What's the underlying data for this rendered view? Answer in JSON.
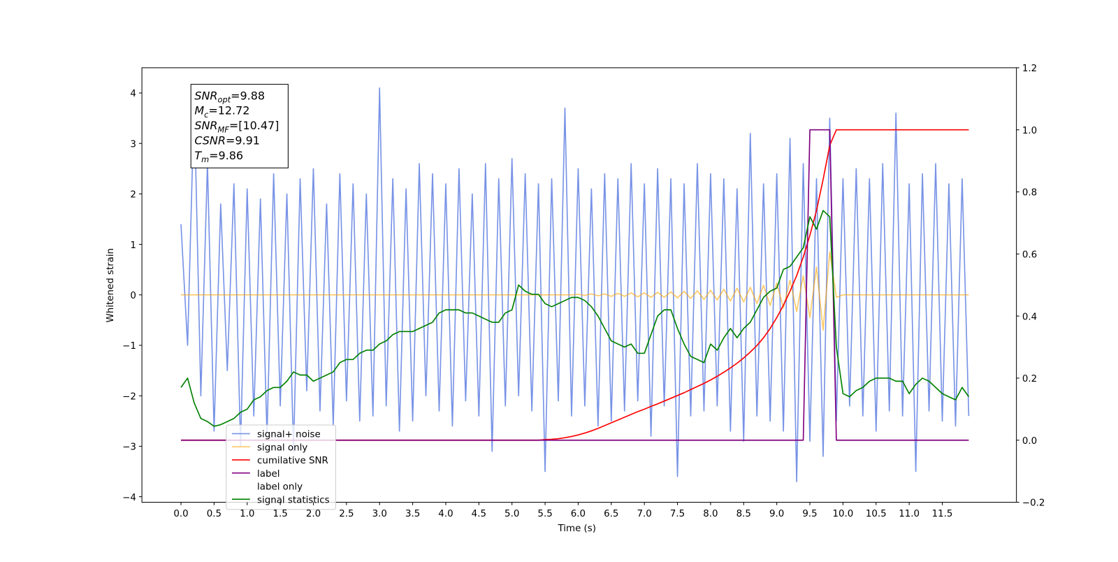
{
  "chart_data": {
    "type": "line",
    "xlabel": "Time (s)",
    "ylabel": "Whitened strain",
    "xlim": [
      -0.59,
      12.62
    ],
    "ylim": [
      -4.11,
      4.5
    ],
    "y2lim": [
      -0.2,
      1.2
    ],
    "xticks": [
      {
        "value": 0,
        "label": "0.0"
      },
      {
        "value": 0.5,
        "label": "0.5"
      },
      {
        "value": 1,
        "label": "1.0"
      },
      {
        "value": 1.5,
        "label": "1.5"
      },
      {
        "value": 2,
        "label": "2.0"
      },
      {
        "value": 2.5,
        "label": "2.5"
      },
      {
        "value": 3,
        "label": "3.0"
      },
      {
        "value": 3.5,
        "label": "3.5"
      },
      {
        "value": 4,
        "label": "4.0"
      },
      {
        "value": 4.5,
        "label": "4.5"
      },
      {
        "value": 5,
        "label": "5.0"
      },
      {
        "value": 5.5,
        "label": "5.5"
      },
      {
        "value": 6,
        "label": "6.0"
      },
      {
        "value": 6.5,
        "label": "6.5"
      },
      {
        "value": 7,
        "label": "7.0"
      },
      {
        "value": 7.5,
        "label": "7.5"
      },
      {
        "value": 8,
        "label": "8.0"
      },
      {
        "value": 8.5,
        "label": "8.5"
      },
      {
        "value": 9,
        "label": "9.0"
      },
      {
        "value": 9.5,
        "label": "9.5"
      },
      {
        "value": 10,
        "label": "10.0"
      },
      {
        "value": 10.5,
        "label": "10.5"
      },
      {
        "value": 11,
        "label": "11.0"
      },
      {
        "value": 11.5,
        "label": "11.5"
      }
    ],
    "yticks": [
      {
        "value": -4,
        "label": "−4"
      },
      {
        "value": -3,
        "label": "−3"
      },
      {
        "value": -2,
        "label": "−2"
      },
      {
        "value": -1,
        "label": "−1"
      },
      0,
      1,
      2,
      3,
      4
    ],
    "y2ticks": [
      {
        "value": -0.2,
        "label": "−0.2"
      },
      {
        "value": 0,
        "label": "0.0"
      },
      {
        "value": 0.2,
        "label": "0.2"
      },
      {
        "value": 0.4,
        "label": "0.4"
      },
      {
        "value": 0.6,
        "label": "0.6"
      },
      {
        "value": 0.8,
        "label": "0.8"
      },
      {
        "value": 1,
        "label": "1.0"
      },
      {
        "value": 1.2,
        "label": "1.2"
      }
    ],
    "legend_loc": "lower left",
    "annotations": [
      {
        "main": "SNR",
        "sub": "opt",
        "rest": "=9.88"
      },
      {
        "main": "M",
        "sub": "c",
        "rest": "=12.72"
      },
      {
        "main": "SNR",
        "sub": "MF",
        "rest": "=[10.47]"
      },
      {
        "main": "CSNR",
        "rest": "=9.91"
      },
      {
        "main": "T",
        "sub": "m",
        "rest": "=9.86"
      }
    ],
    "x": [
      0,
      0.1,
      0.2,
      0.3,
      0.4,
      0.5,
      0.6,
      0.7,
      0.8,
      0.9,
      1,
      1.1,
      1.2,
      1.3,
      1.4,
      1.5,
      1.6,
      1.7,
      1.8,
      1.9,
      2,
      2.1,
      2.2,
      2.3,
      2.4,
      2.5,
      2.6,
      2.7,
      2.8,
      2.9,
      3,
      3.1,
      3.2,
      3.3,
      3.4,
      3.5,
      3.6,
      3.7,
      3.8,
      3.9,
      4,
      4.1,
      4.2,
      4.3,
      4.4,
      4.5,
      4.6,
      4.7,
      4.8,
      4.9,
      5,
      5.1,
      5.2,
      5.3,
      5.4,
      5.5,
      5.6,
      5.7,
      5.8,
      5.9,
      6,
      6.1,
      6.2,
      6.3,
      6.4,
      6.5,
      6.6,
      6.7,
      6.8,
      6.9,
      7,
      7.1,
      7.2,
      7.3,
      7.4,
      7.5,
      7.6,
      7.7,
      7.8,
      7.9,
      8,
      8.1,
      8.2,
      8.3,
      8.4,
      8.5,
      8.6,
      8.7,
      8.8,
      8.9,
      9,
      9.1,
      9.2,
      9.3,
      9.4,
      9.5,
      9.6,
      9.7,
      9.8,
      9.9,
      10,
      10.1,
      10.2,
      10.3,
      10.4,
      10.5,
      10.6,
      10.7,
      10.8,
      10.9,
      11,
      11.1,
      11.2,
      11.3,
      11.4,
      11.5,
      11.6,
      11.7,
      11.8,
      11.9
    ],
    "series": [
      {
        "name": "signal+ noise",
        "color": "#7893e6",
        "values": [
          1.4,
          -1.0,
          3.9,
          -2.0,
          2.6,
          -2.7,
          1.8,
          -1.5,
          2.2,
          -3.0,
          2.1,
          -2.4,
          1.9,
          -2.8,
          2.4,
          -2.2,
          2.0,
          -3.1,
          2.3,
          -1.9,
          2.5,
          -2.3,
          1.8,
          -2.6,
          2.4,
          -2.1,
          2.2,
          -2.5,
          2.0,
          -2.4,
          4.1,
          -2.2,
          2.3,
          -2.7,
          2.1,
          -2.5,
          2.6,
          -2.0,
          2.4,
          -2.3,
          2.2,
          -2.6,
          2.5,
          -2.1,
          2.0,
          -2.4,
          2.6,
          -3.1,
          2.3,
          -2.2,
          2.7,
          -2.0,
          2.4,
          -2.3,
          2.2,
          -3.5,
          2.3,
          -2.1,
          3.7,
          -2.4,
          2.5,
          -2.2,
          2.1,
          -2.6,
          2.4,
          -2.5,
          2.3,
          -2.3,
          2.6,
          -2.1,
          2.2,
          -2.8,
          2.5,
          -2.2,
          2.3,
          -3.6,
          2.2,
          -2.4,
          2.6,
          -2.3,
          2.4,
          -2.2,
          2.3,
          -2.7,
          2.1,
          -2.9,
          3.2,
          -2.4,
          2.2,
          -2.5,
          2.4,
          -2.7,
          3.1,
          -3.7,
          2.6,
          -2.9,
          2.3,
          -3.2,
          3.5,
          -2.5,
          2.3,
          -2.2,
          2.5,
          -2.4,
          2.3,
          -2.7,
          2.6,
          -2.3,
          3.6,
          -2.4,
          2.2,
          -3.5,
          2.4,
          -2.3,
          2.6,
          -2.5,
          2.2,
          -2.6,
          2.3,
          -2.4
        ]
      },
      {
        "name": "signal only",
        "color": "#ffa500",
        "values": [
          0,
          0,
          0,
          0,
          0,
          0,
          0,
          0,
          0,
          0,
          0,
          0,
          0,
          0,
          0,
          0,
          0,
          0,
          0,
          0,
          0,
          0,
          0,
          0,
          0,
          0,
          0,
          0,
          0,
          0,
          0,
          0,
          0,
          0,
          0,
          0,
          0,
          0,
          0,
          0,
          0,
          0,
          0,
          0,
          0,
          0,
          0,
          0,
          0,
          0,
          0,
          0,
          0,
          0,
          0,
          0,
          0,
          0,
          0,
          0,
          0.01,
          -0.01,
          0.02,
          -0.02,
          0.02,
          -0.03,
          0.03,
          -0.03,
          0.04,
          -0.04,
          0.04,
          -0.05,
          0.05,
          -0.05,
          0.06,
          -0.06,
          0.07,
          -0.07,
          0.08,
          -0.09,
          0.09,
          -0.1,
          0.11,
          -0.12,
          0.13,
          -0.14,
          0.15,
          -0.17,
          0.19,
          -0.21,
          0.23,
          -0.26,
          0.29,
          -0.33,
          0.38,
          -0.45,
          0.55,
          -0.7,
          0.85,
          -0.05,
          0,
          0,
          0,
          0,
          0,
          0,
          0,
          0,
          0,
          0,
          0,
          0,
          0,
          0,
          0,
          0,
          0,
          0,
          0,
          0
        ]
      },
      {
        "name": "cumilative SNR",
        "color": "#ff0000",
        "axis": "y2",
        "values": [
          0,
          0,
          0,
          0,
          0,
          0,
          0,
          0,
          0,
          0,
          0,
          0,
          0,
          0,
          0,
          0,
          0,
          0,
          0,
          0,
          0,
          0,
          0,
          0,
          0,
          0,
          0,
          0,
          0,
          0,
          0,
          0,
          0,
          0,
          0,
          0,
          0,
          0,
          0,
          0,
          0,
          0,
          0,
          0,
          0,
          0,
          0,
          0,
          0,
          0,
          0,
          0,
          0,
          0,
          0,
          0.002,
          0.003,
          0.005,
          0.008,
          0.012,
          0.017,
          0.023,
          0.03,
          0.038,
          0.047,
          0.056,
          0.065,
          0.074,
          0.083,
          0.092,
          0.1,
          0.109,
          0.117,
          0.126,
          0.135,
          0.144,
          0.153,
          0.163,
          0.173,
          0.183,
          0.194,
          0.206,
          0.219,
          0.233,
          0.248,
          0.265,
          0.284,
          0.305,
          0.33,
          0.36,
          0.395,
          0.435,
          0.48,
          0.53,
          0.59,
          0.66,
          0.74,
          0.84,
          0.95,
          1,
          1,
          1,
          1,
          1,
          1,
          1,
          1,
          1,
          1,
          1,
          1,
          1,
          1,
          1,
          1,
          1,
          1,
          1,
          1,
          1
        ]
      },
      {
        "name": "label",
        "color": "#800080",
        "axis": "y2",
        "values": [
          0,
          0,
          0,
          0,
          0,
          0,
          0,
          0,
          0,
          0,
          0,
          0,
          0,
          0,
          0,
          0,
          0,
          0,
          0,
          0,
          0,
          0,
          0,
          0,
          0,
          0,
          0,
          0,
          0,
          0,
          0,
          0,
          0,
          0,
          0,
          0,
          0,
          0,
          0,
          0,
          0,
          0,
          0,
          0,
          0,
          0,
          0,
          0,
          0,
          0,
          0,
          0,
          0,
          0,
          0,
          0,
          0,
          0,
          0,
          0,
          0,
          0,
          0,
          0,
          0,
          0,
          0,
          0,
          0,
          0,
          0,
          0,
          0,
          0,
          0,
          0,
          0,
          0,
          0,
          0,
          0,
          0,
          0,
          0,
          0,
          0,
          0,
          0,
          0,
          0,
          0,
          0,
          0,
          0,
          0,
          1,
          1,
          1,
          1,
          0,
          0,
          0,
          0,
          0,
          0,
          0,
          0,
          0,
          0,
          0,
          0,
          0,
          0,
          0,
          0,
          0,
          0,
          0,
          0,
          0
        ]
      },
      {
        "name": "label only",
        "color": "#ffffff",
        "axis": "y2",
        "values": [
          null,
          null,
          null,
          null,
          null,
          null,
          null,
          null,
          null,
          null,
          null,
          null,
          null,
          null,
          null,
          null,
          null,
          null,
          null,
          null,
          null,
          null,
          null,
          null,
          null,
          null,
          null,
          null,
          null,
          null,
          null,
          null,
          null,
          null,
          null,
          null,
          null,
          null,
          null,
          null,
          null,
          null,
          null,
          null,
          null,
          null,
          null,
          null,
          null,
          null,
          null,
          null,
          null,
          null,
          null,
          null,
          null,
          null,
          null,
          null,
          null,
          null,
          null,
          null,
          null,
          null,
          null,
          null,
          null,
          null,
          null,
          null,
          null,
          null,
          null,
          null,
          null,
          null,
          null,
          null,
          null,
          null,
          null,
          null,
          null,
          null,
          null,
          null,
          null,
          null,
          null,
          null,
          null,
          null,
          null,
          null,
          null,
          null,
          null,
          null,
          null,
          null,
          null,
          null,
          null,
          null,
          null,
          null,
          null,
          null,
          null,
          null,
          null,
          null,
          null,
          null,
          null,
          null,
          null,
          null
        ]
      },
      {
        "name": "signal statistics",
        "color": "#008000",
        "axis": "y2",
        "values": [
          0.17,
          0.2,
          0.12,
          0.07,
          0.06,
          0.045,
          0.05,
          0.06,
          0.07,
          0.09,
          0.1,
          0.13,
          0.14,
          0.16,
          0.17,
          0.17,
          0.19,
          0.22,
          0.21,
          0.21,
          0.19,
          0.2,
          0.21,
          0.22,
          0.25,
          0.26,
          0.26,
          0.28,
          0.29,
          0.29,
          0.31,
          0.32,
          0.34,
          0.35,
          0.35,
          0.35,
          0.36,
          0.37,
          0.38,
          0.41,
          0.42,
          0.42,
          0.42,
          0.41,
          0.41,
          0.4,
          0.39,
          0.38,
          0.38,
          0.41,
          0.42,
          0.5,
          0.48,
          0.47,
          0.47,
          0.44,
          0.43,
          0.44,
          0.45,
          0.46,
          0.46,
          0.45,
          0.43,
          0.4,
          0.36,
          0.32,
          0.31,
          0.3,
          0.31,
          0.28,
          0.28,
          0.34,
          0.4,
          0.42,
          0.42,
          0.36,
          0.31,
          0.27,
          0.26,
          0.25,
          0.31,
          0.29,
          0.33,
          0.36,
          0.33,
          0.36,
          0.38,
          0.42,
          0.46,
          0.48,
          0.49,
          0.55,
          0.56,
          0.59,
          0.62,
          0.72,
          0.68,
          0.74,
          0.72,
          0.3,
          0.15,
          0.14,
          0.16,
          0.17,
          0.19,
          0.2,
          0.2,
          0.2,
          0.19,
          0.19,
          0.15,
          0.18,
          0.2,
          0.19,
          0.17,
          0.15,
          0.14,
          0.13,
          0.17,
          0.14
        ]
      }
    ]
  }
}
